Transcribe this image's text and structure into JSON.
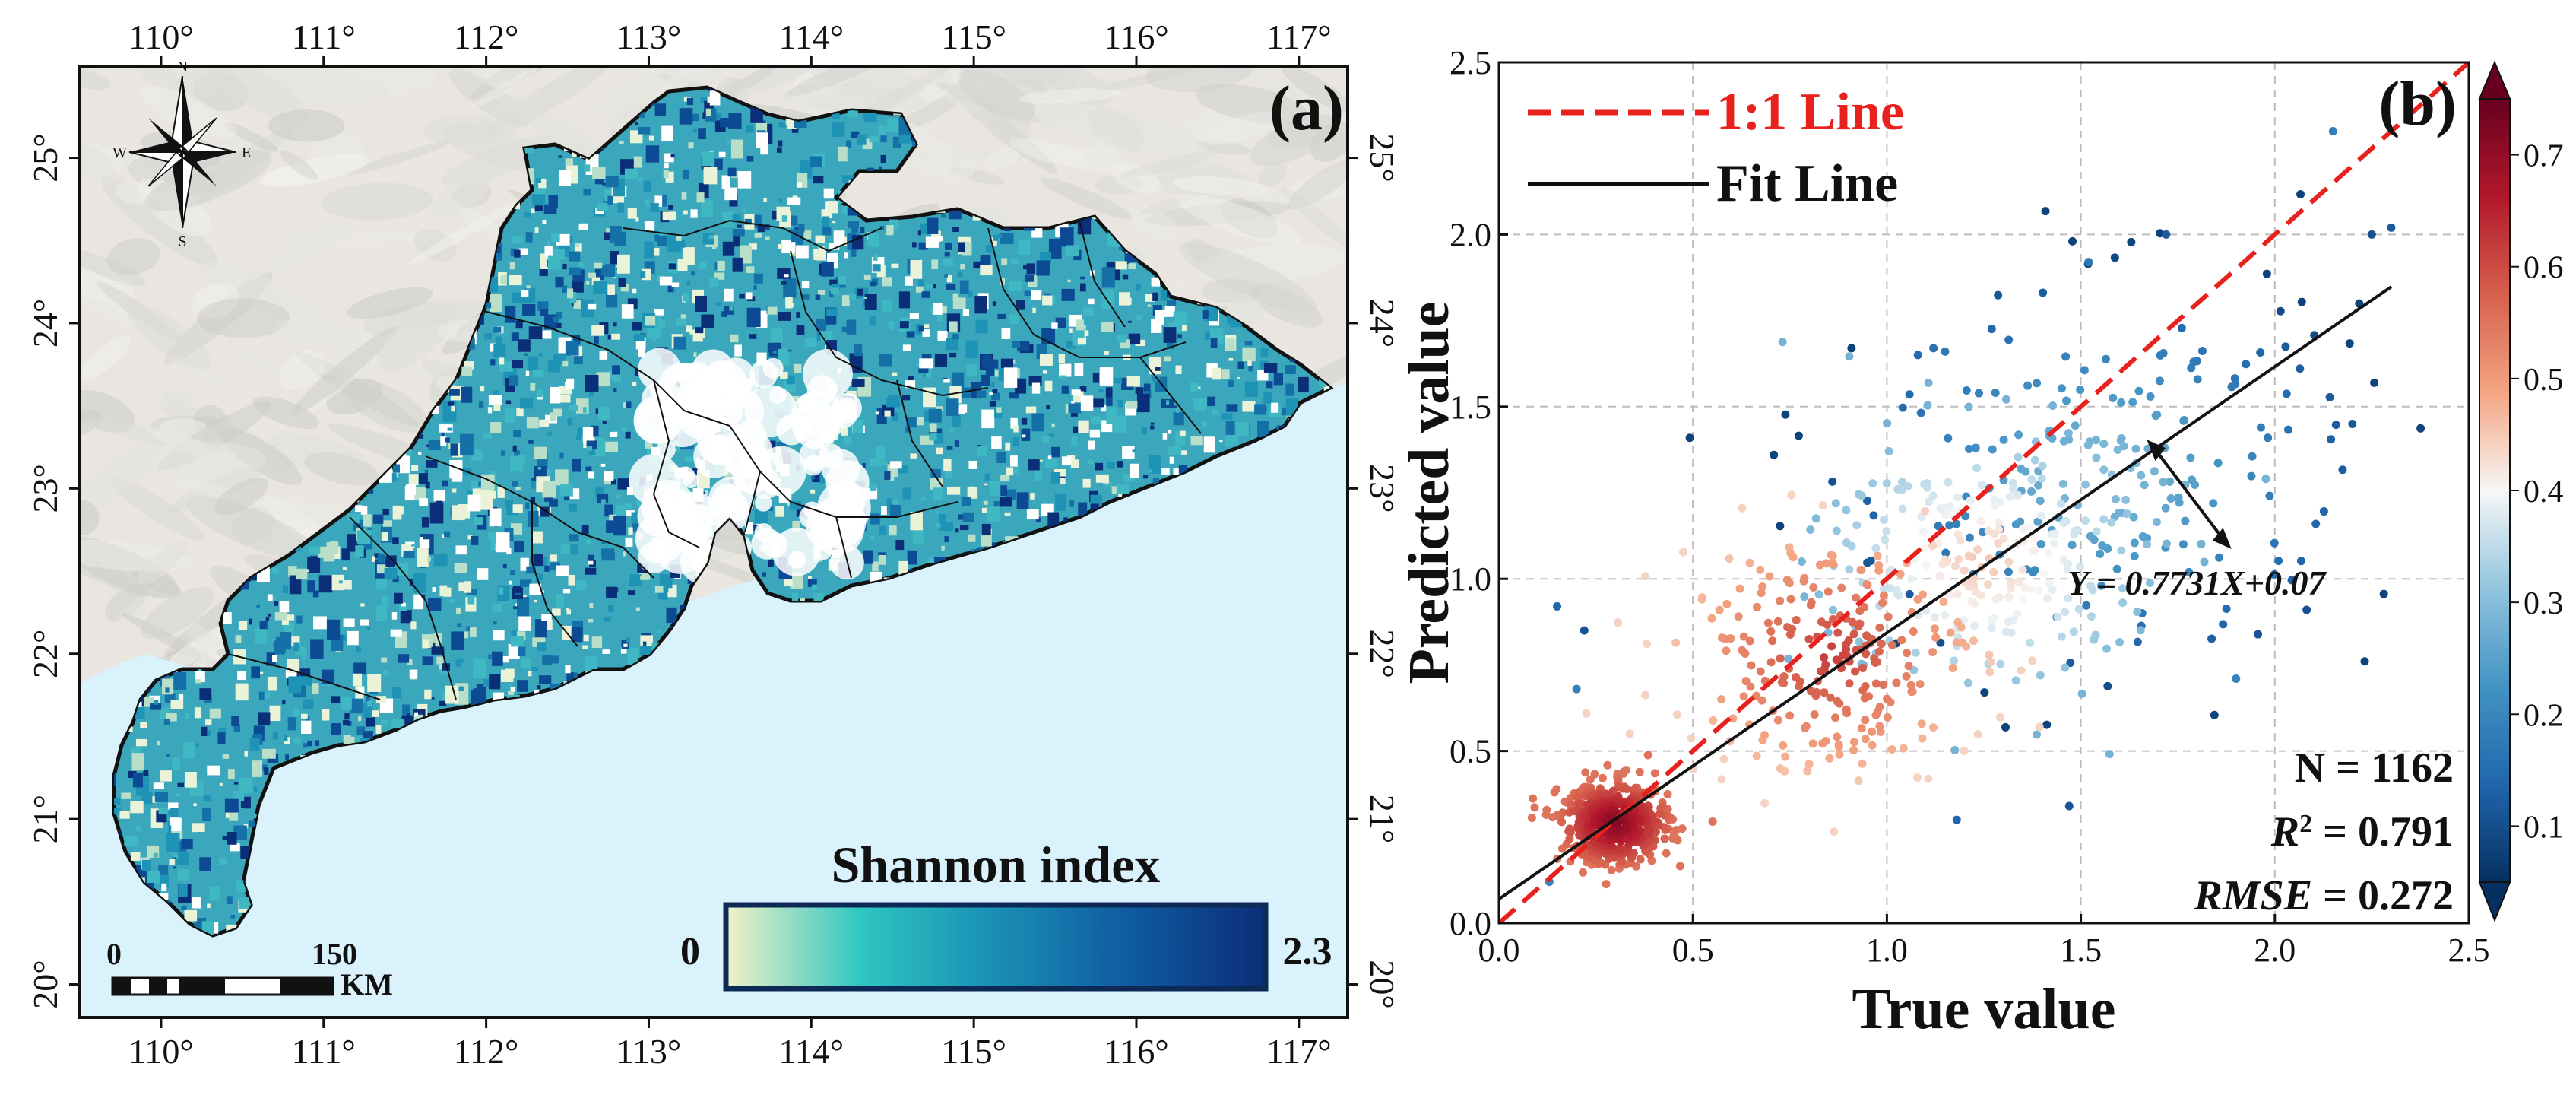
{
  "chart_data": [
    {
      "panel": "(a)",
      "type": "map",
      "title": "Shannon index",
      "x_ticks": [
        "110°",
        "111°",
        "112°",
        "113°",
        "114°",
        "115°",
        "116°",
        "117°"
      ],
      "x_tick_values": [
        110,
        111,
        112,
        113,
        114,
        115,
        116,
        117
      ],
      "y_ticks": [
        "20°",
        "21°",
        "22°",
        "23°",
        "24°",
        "25°"
      ],
      "y_tick_values": [
        20,
        21,
        22,
        23,
        24,
        25
      ],
      "lon_range": [
        109.5,
        117.3
      ],
      "lat_range": [
        19.8,
        25.55
      ],
      "colorbar": {
        "title": "Shannon index",
        "min_label": "0",
        "max_label": "2.3",
        "min": 0,
        "max": 2.3,
        "colors": [
          "#f3f2c8",
          "#2ec6c2",
          "#1a8fb5",
          "#0f5aa0",
          "#0b2e78"
        ]
      },
      "scale_bar": {
        "start_label": "0",
        "end_label": "150",
        "unit": "KM"
      },
      "compass": {
        "n": "N",
        "s": "S",
        "e": "E",
        "w": "W"
      },
      "colors": {
        "sea": "#daf2fb",
        "land_bg": "#e6e3de",
        "low": "#d8ecd0",
        "mid": "#1f93b6",
        "high": "#0d3f8c",
        "border": "#111111"
      }
    },
    {
      "panel": "(b)",
      "type": "scatter",
      "xlabel": "True value",
      "ylabel": "Predicted value",
      "xlim": [
        0,
        2.5
      ],
      "ylim": [
        0,
        2.5
      ],
      "x_ticks": [
        "0.0",
        "0.5",
        "1.0",
        "1.5",
        "2.0",
        "2.5"
      ],
      "y_ticks": [
        "0.0",
        "0.5",
        "1.0",
        "1.5",
        "2.0",
        "2.5"
      ],
      "tick_values": [
        0,
        0.5,
        1.0,
        1.5,
        2.0,
        2.5
      ],
      "grid": true,
      "legend": [
        {
          "label": "1:1 Line",
          "style": "dashed",
          "color": "#e8201e"
        },
        {
          "label": "Fit Line",
          "style": "solid",
          "color": "#000000"
        }
      ],
      "one_to_one": {
        "x": [
          0,
          2.5
        ],
        "y": [
          0,
          2.5
        ]
      },
      "fit_line": {
        "slope": 0.7731,
        "intercept": 0.07,
        "x": [
          0,
          2.3
        ],
        "equation": "Y = 0.7731X+0.07"
      },
      "stats": {
        "n_label": "N = 1162",
        "r_prefix": "R",
        "r_sup": "2",
        "r_value": " = 0.791",
        "rmse_name": "RMSE",
        "rmse_value": " = 0.272"
      },
      "n_points": 1162,
      "colorbar": {
        "ticks": [
          "0.1",
          "0.2",
          "0.3",
          "0.4",
          "0.5",
          "0.6",
          "0.7"
        ],
        "tick_values": [
          0.1,
          0.2,
          0.3,
          0.4,
          0.5,
          0.6,
          0.7
        ],
        "min": 0.05,
        "max": 0.75,
        "colors": [
          "#053061",
          "#2166ac",
          "#4393c3",
          "#92c5de",
          "#f7f7f7",
          "#f4a582",
          "#d6604d",
          "#b2182b",
          "#67001f"
        ]
      },
      "clusters": [
        {
          "cx": 0.3,
          "cy": 0.29,
          "sx": 0.07,
          "sy": 0.06,
          "count": 480,
          "density": [
            0.55,
            0.72
          ]
        },
        {
          "cx": 0.85,
          "cy": 0.78,
          "sx": 0.2,
          "sy": 0.18,
          "count": 250,
          "density": [
            0.44,
            0.62
          ]
        },
        {
          "cx": 1.25,
          "cy": 1.05,
          "sx": 0.22,
          "sy": 0.2,
          "count": 230,
          "density": [
            0.28,
            0.46
          ]
        },
        {
          "cx": 1.55,
          "cy": 1.3,
          "sx": 0.35,
          "sy": 0.3,
          "count": 202,
          "density": [
            0.08,
            0.32
          ]
        }
      ],
      "outliers": [
        {
          "x": 2.15,
          "y": 2.3
        },
        {
          "x": 2.25,
          "y": 2.0
        },
        {
          "x": 2.3,
          "y": 2.02
        },
        {
          "x": 1.72,
          "y": 2.0
        },
        {
          "x": 1.52,
          "y": 1.92
        },
        {
          "x": 1.15,
          "y": 1.66
        },
        {
          "x": 1.08,
          "y": 1.65
        },
        {
          "x": 1.12,
          "y": 1.67
        },
        {
          "x": 0.15,
          "y": 0.92
        },
        {
          "x": 0.22,
          "y": 0.85
        },
        {
          "x": 1.9,
          "y": 0.71
        },
        {
          "x": 2.2,
          "y": 1.45
        },
        {
          "x": 1.47,
          "y": 0.34
        },
        {
          "x": 1.18,
          "y": 0.3
        },
        {
          "x": 0.13,
          "y": 0.12
        },
        {
          "x": 0.2,
          "y": 0.68
        }
      ]
    }
  ]
}
